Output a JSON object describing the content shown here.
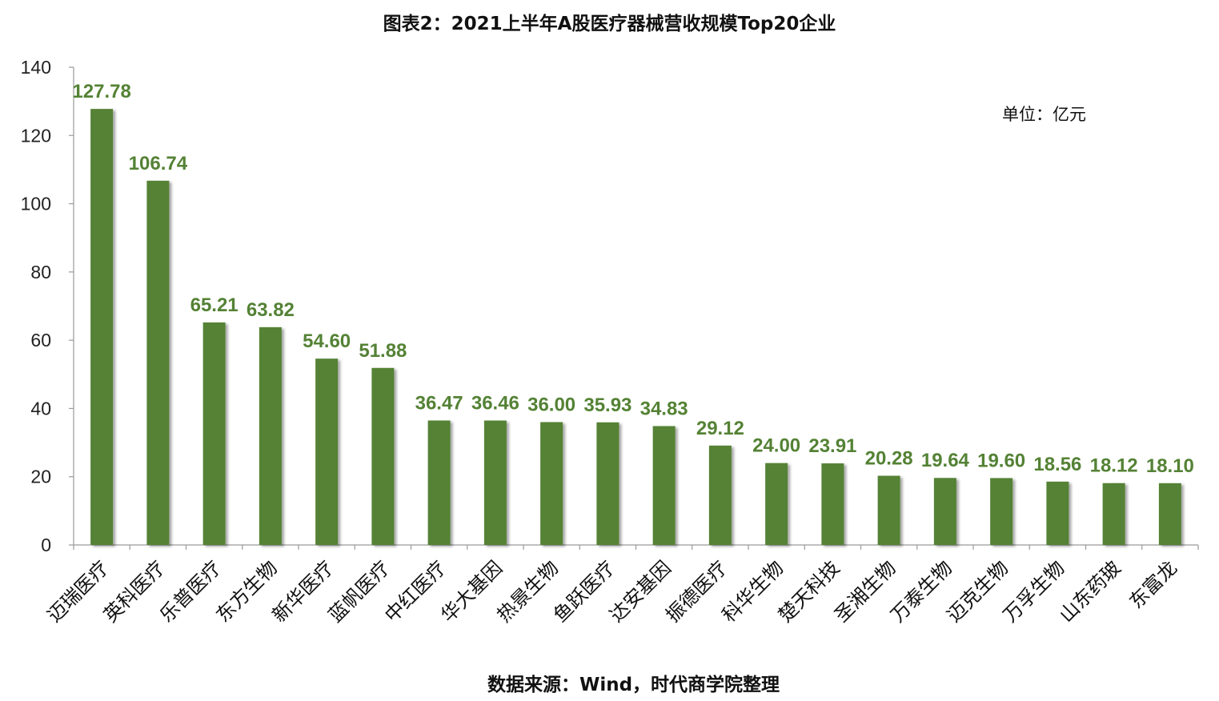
{
  "chart_data": {
    "type": "bar",
    "title": "图表2：2021上半年A股医疗器械营收规模Top20企业",
    "unit_note": "单位：亿元",
    "source": "数据来源：Wind，时代商学院整理",
    "categories": [
      "迈瑞医疗",
      "英科医疗",
      "乐普医疗",
      "东方生物",
      "新华医疗",
      "蓝帆医疗",
      "中红医疗",
      "华大基因",
      "热景生物",
      "鱼跃医疗",
      "达安基因",
      "振德医疗",
      "科华生物",
      "楚天科技",
      "圣湘生物",
      "万泰生物",
      "迈克生物",
      "万孚生物",
      "山东药玻",
      "东富龙"
    ],
    "values": [
      127.78,
      106.74,
      65.21,
      63.82,
      54.6,
      51.88,
      36.47,
      36.46,
      36.0,
      35.93,
      34.83,
      29.12,
      24.0,
      23.91,
      20.28,
      19.64,
      19.6,
      18.56,
      18.12,
      18.1
    ],
    "value_labels": [
      "127.78",
      "106.74",
      "65.21",
      "63.82",
      "54.60",
      "51.88",
      "36.47",
      "36.46",
      "36.00",
      "35.93",
      "34.83",
      "29.12",
      "24.00",
      "23.91",
      "20.28",
      "19.64",
      "19.60",
      "18.56",
      "18.12",
      "18.10"
    ],
    "y_ticks": [
      "0",
      "20",
      "40",
      "60",
      "80",
      "100",
      "120",
      "140"
    ],
    "ylim": [
      0,
      140
    ],
    "grid": false,
    "bar_color": "#548235",
    "label_color": "#548235"
  }
}
